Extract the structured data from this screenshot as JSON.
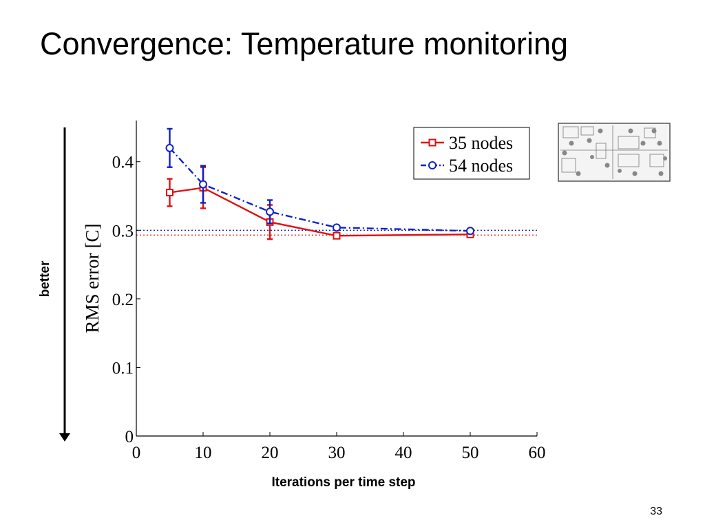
{
  "slide": {
    "title": "Convergence: Temperature monitoring",
    "page_number": "33",
    "better_label": "better",
    "floorplan_icon": "floor-plan-thumbnail"
  },
  "chart_data": {
    "type": "line",
    "title": "",
    "xlabel": "Iterations per time step",
    "ylabel": "RMS error [C]",
    "xlim": [
      0,
      60
    ],
    "ylim": [
      0,
      0.46
    ],
    "xticks": [
      0,
      10,
      20,
      30,
      40,
      50,
      60
    ],
    "yticks": [
      0,
      0.1,
      0.2,
      0.3,
      0.4
    ],
    "ytick_labels": [
      "0",
      "0.1",
      "0.2",
      "0.3",
      "0.4"
    ],
    "grid": false,
    "legend_position": "top-right",
    "series": [
      {
        "name": "35 nodes",
        "color": "#e01010",
        "line_style": "solid",
        "marker": "square",
        "x": [
          5,
          10,
          20,
          30,
          50
        ],
        "y": [
          0.355,
          0.362,
          0.312,
          0.292,
          0.294
        ],
        "err": [
          0.02,
          0.03,
          0.025,
          0.0,
          0.0
        ],
        "reference_y": 0.293
      },
      {
        "name": "54 nodes",
        "color": "#1020c8",
        "line_style": "dashdot",
        "marker": "circle",
        "x": [
          5,
          10,
          20,
          30,
          50
        ],
        "y": [
          0.42,
          0.367,
          0.327,
          0.304,
          0.299
        ],
        "err": [
          0.028,
          0.027,
          0.017,
          0.0,
          0.0
        ],
        "reference_y": 0.3
      }
    ]
  }
}
